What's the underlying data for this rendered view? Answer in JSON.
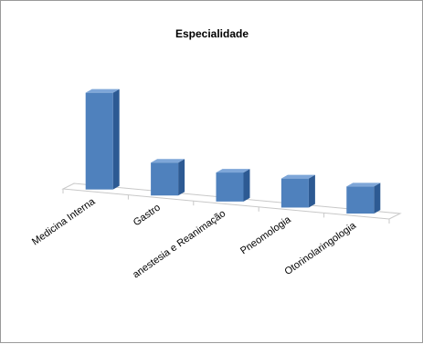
{
  "chart_data": {
    "type": "bar",
    "title": "Especialidade",
    "categories": [
      "Medicina Interna",
      "Gastro",
      "anestesia e Reanimação",
      "Pneomologia",
      "Otorinolaringologia"
    ],
    "values": [
      100,
      34,
      30,
      30,
      28
    ],
    "ylim": [
      0,
      100
    ],
    "grid": false,
    "legend": "none",
    "bar_colors": {
      "front": "#4f81bd",
      "side": "#2d5a93",
      "top": "#7ea6d8"
    },
    "floor_color": "#c8c8c8"
  }
}
